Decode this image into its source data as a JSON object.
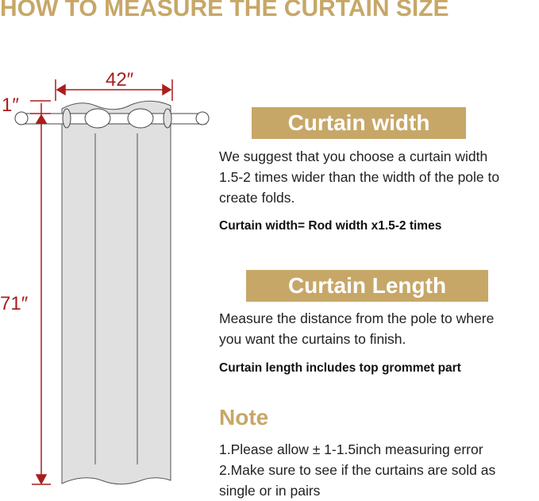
{
  "title": "HOW TO MEASURE THE CURTAIN SIZE",
  "diagram": {
    "width_label": "42″",
    "grommet_label": "1″",
    "length_label": "71″",
    "accent_color": "#a81e1e"
  },
  "width_section": {
    "heading": "Curtain width",
    "text": "We suggest that you choose a curtain width 1.5-2 times wider than the width of the pole to create folds.",
    "formula": "Curtain width= Rod width x1.5-2 times"
  },
  "length_section": {
    "heading": "Curtain Length",
    "text": "Measure the distance from the pole to where you want the curtains to finish.",
    "formula": "Curtain length includes top grommet part"
  },
  "note": {
    "heading": "Note",
    "items": [
      "1.Please allow ± 1-1.5inch measuring error",
      "2.Make sure to see if the curtains are sold as single or in pairs"
    ]
  },
  "colors": {
    "gold": "#c7a768",
    "red": "#a81e1e"
  }
}
